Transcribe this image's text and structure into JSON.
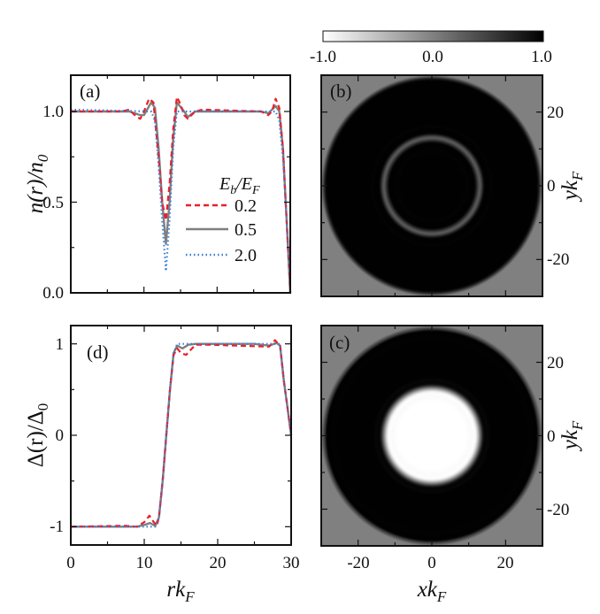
{
  "chart_data": [
    {
      "panel": "(a)",
      "type": "line",
      "ylabel": {
        "main": "n(r)/n",
        "sub": "0"
      },
      "xlim": [
        0,
        30
      ],
      "ylim": [
        0,
        1.2
      ],
      "xticks": [
        0,
        10,
        20,
        30
      ],
      "yticks": [
        "0.0",
        "0.5",
        "1.0"
      ],
      "grid": false,
      "legend": {
        "title": {
          "main": "E",
          "sub1": "b",
          "mid": "/E",
          "sub2": "F"
        },
        "placement": "center-right"
      },
      "series": [
        {
          "name": "0.2",
          "color": "#e8202a",
          "style": "dashed",
          "points": [
            [
              0,
              1
            ],
            [
              7,
              1
            ],
            [
              8,
              1.01
            ],
            [
              9,
              0.97
            ],
            [
              9.5,
              0.96
            ],
            [
              10,
              1.0
            ],
            [
              10.7,
              1.07
            ],
            [
              11.3,
              1.05
            ],
            [
              12,
              0.75
            ],
            [
              12.5,
              0.5
            ],
            [
              13,
              0.4
            ],
            [
              13.5,
              0.6
            ],
            [
              14,
              0.9
            ],
            [
              14.5,
              1.08
            ],
            [
              15,
              1.04
            ],
            [
              15.5,
              0.98
            ],
            [
              16,
              0.96
            ],
            [
              17,
              1.0
            ],
            [
              18,
              1.01
            ],
            [
              26,
              1.0
            ],
            [
              27,
              0.98
            ],
            [
              27.5,
              1.0
            ],
            [
              28,
              1.07
            ],
            [
              28.5,
              1.02
            ],
            [
              29,
              0.8
            ],
            [
              29.5,
              0.4
            ],
            [
              30,
              0
            ]
          ]
        },
        {
          "name": "0.5",
          "color": "#808080",
          "style": "solid",
          "points": [
            [
              0,
              1.0
            ],
            [
              8,
              1.0
            ],
            [
              9.5,
              0.98
            ],
            [
              10,
              0.98
            ],
            [
              11,
              1.05
            ],
            [
              11.5,
              1.02
            ],
            [
              12,
              0.8
            ],
            [
              12.5,
              0.5
            ],
            [
              13,
              0.27
            ],
            [
              13.5,
              0.5
            ],
            [
              14,
              0.85
            ],
            [
              14.5,
              1.05
            ],
            [
              15.5,
              1.0
            ],
            [
              16,
              0.97
            ],
            [
              17,
              1.0
            ],
            [
              26,
              1.0
            ],
            [
              27,
              0.99
            ],
            [
              28,
              1.03
            ],
            [
              28.5,
              1.0
            ],
            [
              29,
              0.8
            ],
            [
              29.5,
              0.4
            ],
            [
              30,
              0
            ]
          ]
        },
        {
          "name": "2.0",
          "color": "#3a7fd5",
          "style": "dotted",
          "points": [
            [
              0,
              1.01
            ],
            [
              11,
              1.0
            ],
            [
              11.5,
              0.95
            ],
            [
              12,
              0.7
            ],
            [
              12.5,
              0.4
            ],
            [
              13,
              0.12
            ],
            [
              13.5,
              0.4
            ],
            [
              14,
              0.8
            ],
            [
              14.5,
              1.0
            ],
            [
              15,
              1.0
            ],
            [
              28,
              1.0
            ],
            [
              28.5,
              0.95
            ],
            [
              29,
              0.75
            ],
            [
              29.5,
              0.4
            ],
            [
              30,
              0
            ]
          ]
        }
      ]
    },
    {
      "panel": "(d)",
      "type": "line",
      "xlabel": {
        "main": "rk",
        "sub": "F"
      },
      "ylabel": {
        "main": "Δ(r)/Δ",
        "sub": "0"
      },
      "xlim": [
        0,
        30
      ],
      "ylim": [
        -1.2,
        1.2
      ],
      "xticks": [
        "0",
        "10",
        "20",
        "30"
      ],
      "yticks": [
        "-1",
        "0",
        "1"
      ],
      "grid": false,
      "series": [
        {
          "name": "0.2",
          "color": "#e8202a",
          "style": "dashed",
          "points": [
            [
              0,
              -1
            ],
            [
              7.5,
              -0.99
            ],
            [
              9,
              -1
            ],
            [
              10,
              -0.95
            ],
            [
              10.7,
              -0.88
            ],
            [
              11.3,
              -0.95
            ],
            [
              11.7,
              -0.99
            ],
            [
              12,
              -0.9
            ],
            [
              12.5,
              -0.5
            ],
            [
              13,
              0
            ],
            [
              13.5,
              0.5
            ],
            [
              14,
              0.88
            ],
            [
              14.5,
              0.95
            ],
            [
              15,
              0.9
            ],
            [
              15.7,
              0.88
            ],
            [
              16.5,
              0.95
            ],
            [
              17,
              0.99
            ],
            [
              19,
              0.99
            ],
            [
              27,
              0.97
            ],
            [
              27.8,
              1.04
            ],
            [
              28.5,
              0.98
            ],
            [
              29,
              0.6
            ],
            [
              29.5,
              0.3
            ],
            [
              30,
              0
            ]
          ]
        },
        {
          "name": "0.5",
          "color": "#808080",
          "style": "solid",
          "points": [
            [
              0,
              -1
            ],
            [
              9,
              -1
            ],
            [
              10,
              -0.98
            ],
            [
              10.8,
              -0.96
            ],
            [
              11.5,
              -0.99
            ],
            [
              12,
              -0.9
            ],
            [
              12.5,
              -0.5
            ],
            [
              13,
              0
            ],
            [
              13.5,
              0.5
            ],
            [
              14,
              0.9
            ],
            [
              14.5,
              0.98
            ],
            [
              15.2,
              0.95
            ],
            [
              16,
              0.99
            ],
            [
              17,
              1
            ],
            [
              25,
              1
            ],
            [
              27,
              0.98
            ],
            [
              28,
              1.01
            ],
            [
              28.5,
              0.98
            ],
            [
              29,
              0.6
            ],
            [
              29.5,
              0.3
            ],
            [
              30,
              0
            ]
          ]
        },
        {
          "name": "2.0",
          "color": "#3a7fd5",
          "style": "dotted",
          "points": [
            [
              0,
              -1
            ],
            [
              11.5,
              -1
            ],
            [
              12,
              -0.9
            ],
            [
              12.5,
              -0.5
            ],
            [
              13,
              0
            ],
            [
              13.5,
              0.5
            ],
            [
              14,
              0.9
            ],
            [
              14.5,
              1
            ],
            [
              28.5,
              1
            ],
            [
              29,
              0.6
            ],
            [
              29.5,
              0.3
            ],
            [
              30,
              0
            ]
          ]
        }
      ]
    },
    {
      "panel": "(b)",
      "type": "heatmap",
      "quantity": "density",
      "ylabel": {
        "main": "yk",
        "sub": "F"
      },
      "xlim": [
        -30,
        30
      ],
      "ylim": [
        -30,
        30
      ],
      "yticks": [
        "20",
        "0",
        "-20"
      ],
      "colormap": {
        "min": -1.0,
        "max": 1.0,
        "min_color": "#ffffff",
        "mid_color": "#808080",
        "max_color": "#000000"
      }
    },
    {
      "panel": "(c)",
      "type": "heatmap",
      "quantity": "order-parameter",
      "xlabel": {
        "main": "xk",
        "sub": "F"
      },
      "ylabel": {
        "main": "yk",
        "sub": "F"
      },
      "xlim": [
        -30,
        30
      ],
      "ylim": [
        -30,
        30
      ],
      "xticks": [
        "-20",
        "0",
        "20"
      ],
      "yticks": [
        "20",
        "0",
        "-20"
      ]
    }
  ],
  "colorbar": {
    "ticks": [
      "-1.0",
      "0.0",
      "1.0"
    ],
    "orientation": "horizontal",
    "placement": "top"
  }
}
